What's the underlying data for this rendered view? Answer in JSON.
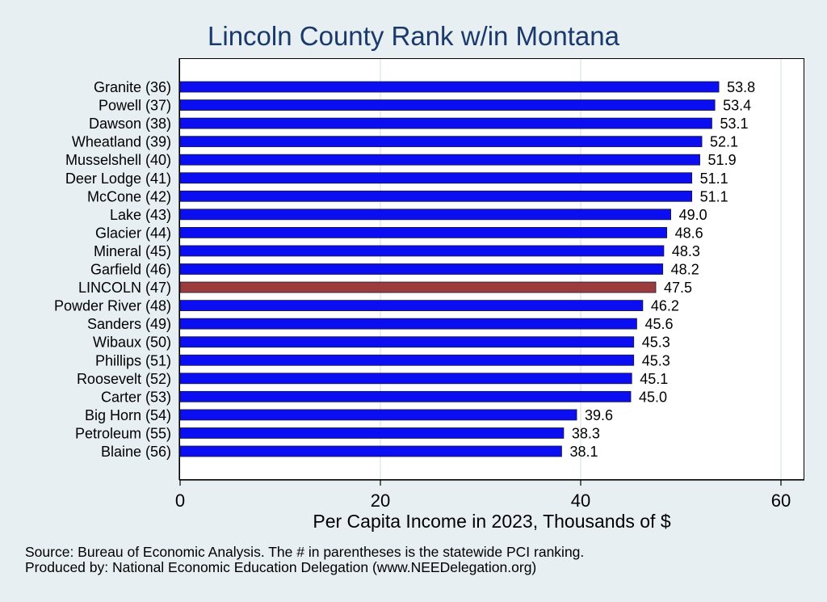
{
  "chart_data": {
    "type": "bar",
    "orientation": "horizontal",
    "title": "Lincoln County Rank w/in Montana",
    "xlabel": "Per Capita Income in 2023, Thousands of $",
    "ylabel": "",
    "xlim": [
      0,
      62
    ],
    "xticks": [
      0,
      20,
      40,
      60
    ],
    "grid": true,
    "categories": [
      "Granite (36)",
      "Powell (37)",
      "Dawson (38)",
      "Wheatland (39)",
      "Musselshell (40)",
      "Deer Lodge (41)",
      "McCone (42)",
      "Lake (43)",
      "Glacier (44)",
      "Mineral (45)",
      "Garfield (46)",
      "LINCOLN (47)",
      "Powder River (48)",
      "Sanders (49)",
      "Wibaux (50)",
      "Phillips (51)",
      "Roosevelt (52)",
      "Carter (53)",
      "Big Horn (54)",
      "Petroleum (55)",
      "Blaine (56)"
    ],
    "values": [
      53.8,
      53.4,
      53.1,
      52.1,
      51.9,
      51.1,
      51.1,
      49.0,
      48.6,
      48.3,
      48.2,
      47.5,
      46.2,
      45.6,
      45.3,
      45.3,
      45.1,
      45.0,
      39.6,
      38.3,
      38.1
    ],
    "value_labels": [
      "53.8",
      "53.4",
      "53.1",
      "52.1",
      "51.9",
      "51.1",
      "51.1",
      "49.0",
      "48.6",
      "48.3",
      "48.2",
      "47.5",
      "46.2",
      "45.6",
      "45.3",
      "45.3",
      "45.1",
      "45.0",
      "39.6",
      "38.3",
      "38.1"
    ],
    "highlight_category": "LINCOLN (47)",
    "colors": {
      "bar": "#0a0ef0",
      "highlight": "#9c3b3b",
      "bar_edge": "#1a1a3a",
      "grid": "#e2e8ec",
      "title": "#1a3a6b",
      "background": "#e8eff2"
    }
  },
  "notes": {
    "source": "Source: Bureau of Economic Analysis. The # in parentheses is the statewide PCI ranking.",
    "produced_by": "Produced by: National Economic Education Delegation (www.NEEDelegation.org)"
  }
}
